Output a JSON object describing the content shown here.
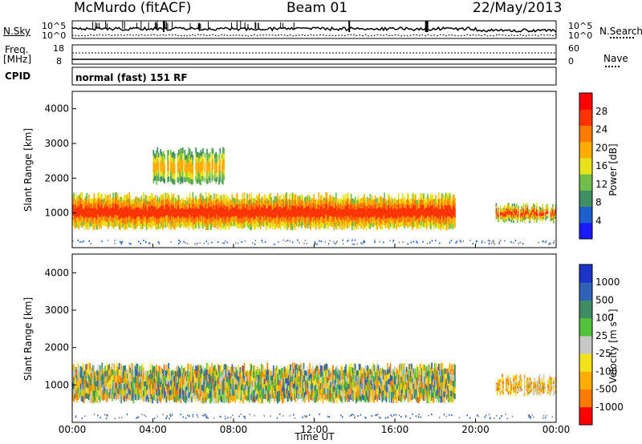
{
  "header": {
    "station": "McMurdo (fitACF)",
    "beam": "Beam 01",
    "date": "22/May/2013"
  },
  "aux": {
    "nsky_label": "N.Sky",
    "nsearch_label": "N.Search",
    "left_ticks": [
      "10^5",
      "10^0"
    ],
    "right_ticks": [
      "10^5",
      "10^0"
    ],
    "freq_label": "Freq.",
    "freq_unit": "[MHz]",
    "freq_ticks": [
      "18",
      "8"
    ],
    "nave_ticks": [
      "60",
      "0"
    ],
    "nave_label": "Nave",
    "cpid_label": "CPID",
    "cpid_value": "normal (fast) 151 RF"
  },
  "colors": {
    "power": [
      "#1a1aff",
      "#1c5fcf",
      "#3f8f63",
      "#6fbe4a",
      "#e7e21c",
      "#ffae00",
      "#ff7a00",
      "#ff3300",
      "#ff0000"
    ],
    "velocity": [
      "#1c34c8",
      "#2f62b8",
      "#3f8c64",
      "#52c23a",
      "#c8c8c8",
      "#f3e21c",
      "#ffae00",
      "#ff7a00",
      "#ff0000"
    ],
    "ground_scatter": "#8a8a8a"
  },
  "chart_data": [
    {
      "type": "heatmap",
      "title": "Power",
      "xlabel": "Time UT",
      "ylabel": "Slant Range [km]",
      "xlim": [
        "00:00",
        "24:00"
      ],
      "ylim": [
        0,
        4500
      ],
      "x_ticks": [
        "00:00",
        "04:00",
        "08:00",
        "12:00",
        "16:00",
        "20:00",
        "00:00"
      ],
      "y_ticks": [
        "1000",
        "2000",
        "3000",
        "4000"
      ],
      "colorbar_label": "Power [dB]",
      "colorbar_ticks": [
        "4",
        "8",
        "12",
        "16",
        "20",
        "24",
        "28"
      ],
      "series": [
        {
          "region": "main echo band",
          "start": "00:00",
          "end": "19:00",
          "range_km": [
            500,
            1600
          ],
          "power_db": [
            8,
            30
          ]
        },
        {
          "region": "late echo patches",
          "start": "21:00",
          "end": "24:00",
          "range_km": [
            700,
            1300
          ],
          "power_db": [
            4,
            28
          ]
        },
        {
          "region": "sparse high-range echoes",
          "start": "04:00",
          "end": "07:30",
          "range_km": [
            1800,
            2900
          ],
          "power_db": [
            4,
            20
          ]
        }
      ]
    },
    {
      "type": "heatmap",
      "title": "Velocity",
      "xlabel": "Time UT",
      "ylabel": "Slant Range [km]",
      "xlim": [
        "00:00",
        "24:00"
      ],
      "ylim": [
        0,
        4500
      ],
      "x_ticks": [
        "00:00",
        "04:00",
        "08:00",
        "12:00",
        "16:00",
        "20:00",
        "00:00"
      ],
      "y_ticks": [
        "1000",
        "2000",
        "3000",
        "4000"
      ],
      "colorbar_label": "Velocity [m s⁻¹]",
      "colorbar_ticks": [
        "1000",
        "500",
        "100",
        "25",
        "-25",
        "-100",
        "-500",
        "-1000"
      ],
      "series": [
        {
          "region": "main echo band",
          "start": "00:00",
          "end": "19:00",
          "range_km": [
            500,
            1600
          ],
          "velocity_ms": [
            -500,
            500
          ]
        },
        {
          "region": "late echo patches",
          "start": "21:00",
          "end": "24:00",
          "range_km": [
            700,
            1300
          ],
          "velocity_ms": [
            -500,
            100
          ]
        }
      ]
    }
  ]
}
